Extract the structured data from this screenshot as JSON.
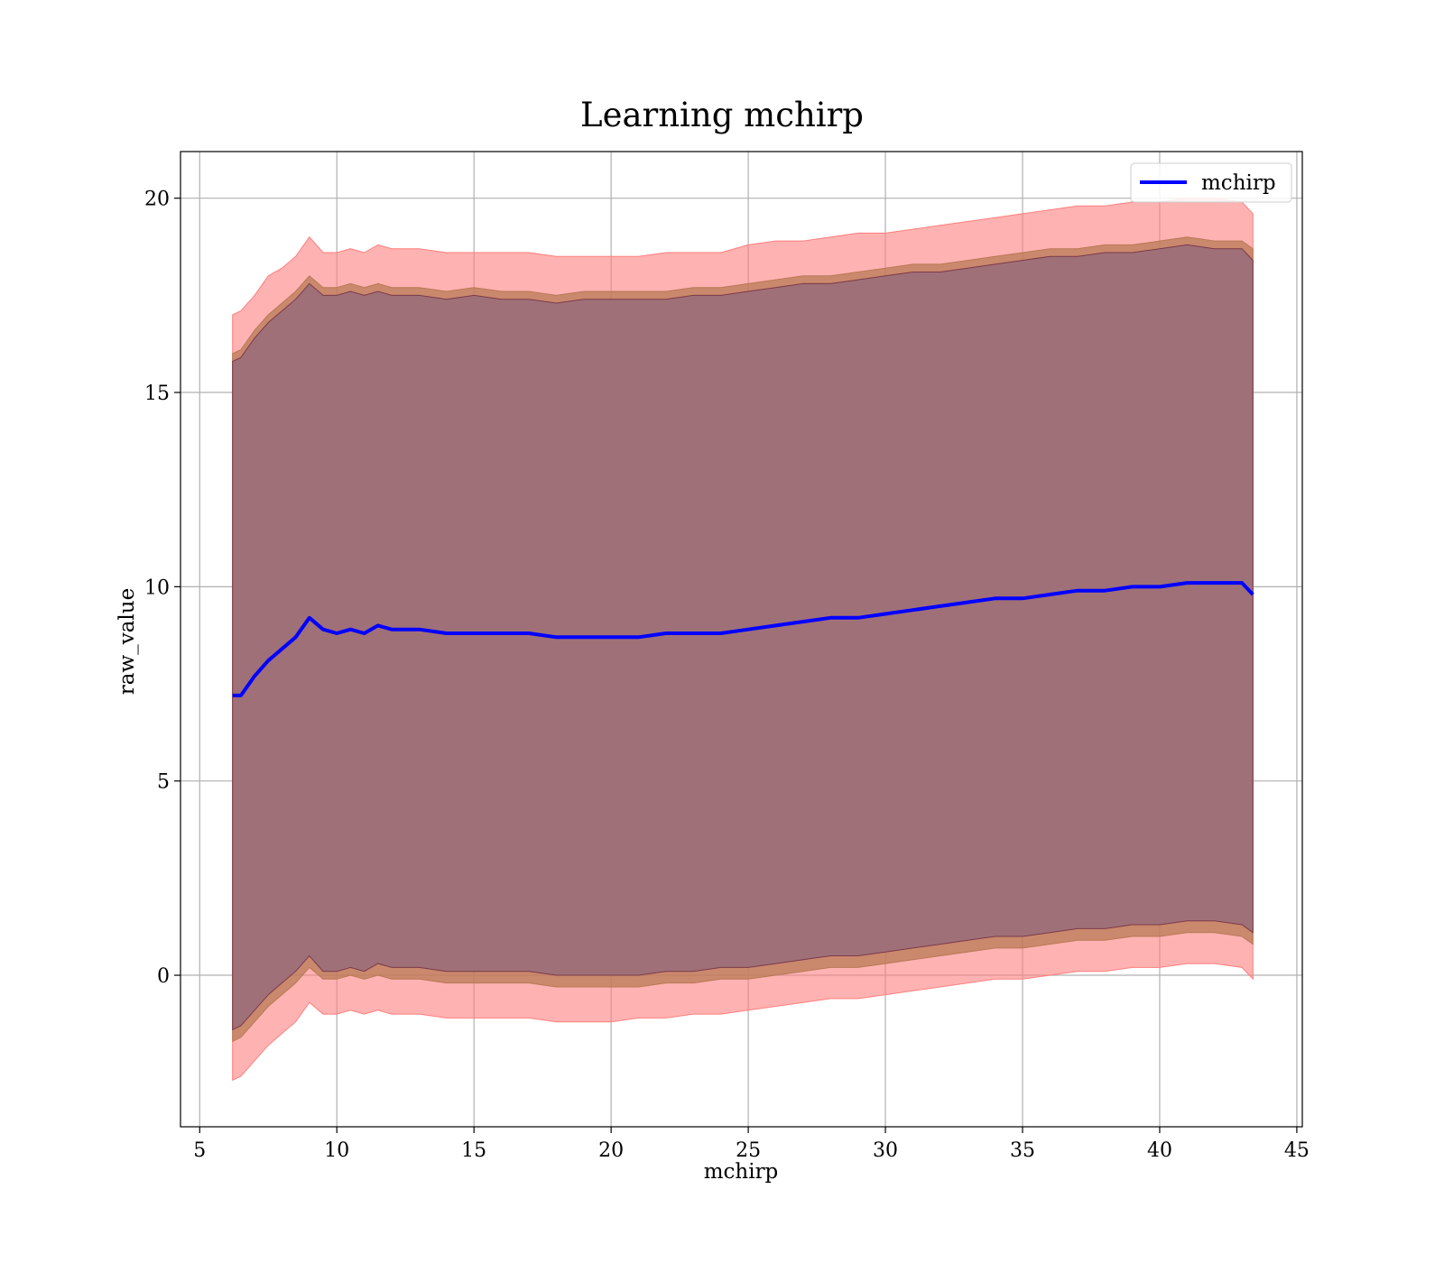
{
  "chart_data": {
    "type": "line",
    "title": "Learning mchirp",
    "xlabel": "mchirp",
    "ylabel": "raw_value",
    "xlim": [
      4.3,
      45.2
    ],
    "ylim": [
      -3.9,
      21.2
    ],
    "xticks": [
      5,
      10,
      15,
      20,
      25,
      30,
      35,
      40,
      45
    ],
    "yticks": [
      0,
      5,
      10,
      15,
      20
    ],
    "grid": true,
    "legend": {
      "position": "upper right",
      "entries": [
        "mchirp"
      ]
    },
    "colors": {
      "line": "#0000ff",
      "band_outer": "#ff7f7f",
      "band_middle": "#b87a55",
      "band_inner": "#7a3a4a",
      "plot_inner_fill": "#a07078"
    },
    "x": [
      6.2,
      6.5,
      7.0,
      7.5,
      8.0,
      8.5,
      9.0,
      9.5,
      10.0,
      10.5,
      11.0,
      11.5,
      12.0,
      13.0,
      14.0,
      15.0,
      16.0,
      17.0,
      18.0,
      19.0,
      20.0,
      21.0,
      22.0,
      23.0,
      24.0,
      25.0,
      26.0,
      27.0,
      28.0,
      29.0,
      30.0,
      31.0,
      32.0,
      33.0,
      34.0,
      35.0,
      36.0,
      37.0,
      38.0,
      39.0,
      40.0,
      41.0,
      42.0,
      43.0,
      43.4
    ],
    "series": [
      {
        "name": "mchirp",
        "mean": [
          7.2,
          7.2,
          7.7,
          8.1,
          8.4,
          8.7,
          9.2,
          8.9,
          8.8,
          8.9,
          8.8,
          9.0,
          8.9,
          8.9,
          8.8,
          8.8,
          8.8,
          8.8,
          8.7,
          8.7,
          8.7,
          8.7,
          8.8,
          8.8,
          8.8,
          8.9,
          9.0,
          9.1,
          9.2,
          9.2,
          9.3,
          9.4,
          9.5,
          9.6,
          9.7,
          9.7,
          9.8,
          9.9,
          9.9,
          10.0,
          10.0,
          10.1,
          10.1,
          10.1,
          9.8
        ],
        "upper_outer": [
          17.0,
          17.1,
          17.5,
          18.0,
          18.2,
          18.5,
          19.0,
          18.6,
          18.6,
          18.7,
          18.6,
          18.8,
          18.7,
          18.7,
          18.6,
          18.6,
          18.6,
          18.6,
          18.5,
          18.5,
          18.5,
          18.5,
          18.6,
          18.6,
          18.6,
          18.8,
          18.9,
          18.9,
          19.0,
          19.1,
          19.1,
          19.2,
          19.3,
          19.4,
          19.5,
          19.6,
          19.7,
          19.8,
          19.8,
          19.9,
          19.9,
          20.0,
          20.0,
          19.9,
          19.6
        ],
        "upper_middle": [
          16.0,
          16.1,
          16.6,
          17.0,
          17.3,
          17.6,
          18.0,
          17.7,
          17.7,
          17.8,
          17.7,
          17.8,
          17.7,
          17.7,
          17.6,
          17.7,
          17.6,
          17.6,
          17.5,
          17.6,
          17.6,
          17.6,
          17.6,
          17.7,
          17.7,
          17.8,
          17.9,
          18.0,
          18.0,
          18.1,
          18.2,
          18.3,
          18.3,
          18.4,
          18.5,
          18.6,
          18.7,
          18.7,
          18.8,
          18.8,
          18.9,
          19.0,
          18.9,
          18.9,
          18.7
        ],
        "upper_inner": [
          15.8,
          15.9,
          16.4,
          16.8,
          17.1,
          17.4,
          17.8,
          17.5,
          17.5,
          17.6,
          17.5,
          17.6,
          17.5,
          17.5,
          17.4,
          17.5,
          17.4,
          17.4,
          17.3,
          17.4,
          17.4,
          17.4,
          17.4,
          17.5,
          17.5,
          17.6,
          17.7,
          17.8,
          17.8,
          17.9,
          18.0,
          18.1,
          18.1,
          18.2,
          18.3,
          18.4,
          18.5,
          18.5,
          18.6,
          18.6,
          18.7,
          18.8,
          18.7,
          18.7,
          18.4
        ],
        "lower_inner": [
          -1.4,
          -1.3,
          -0.9,
          -0.5,
          -0.2,
          0.1,
          0.5,
          0.1,
          0.1,
          0.2,
          0.1,
          0.3,
          0.2,
          0.2,
          0.1,
          0.1,
          0.1,
          0.1,
          0.0,
          0.0,
          0.0,
          0.0,
          0.1,
          0.1,
          0.2,
          0.2,
          0.3,
          0.4,
          0.5,
          0.5,
          0.6,
          0.7,
          0.8,
          0.9,
          1.0,
          1.0,
          1.1,
          1.2,
          1.2,
          1.3,
          1.3,
          1.4,
          1.4,
          1.3,
          1.1
        ],
        "lower_middle": [
          -1.7,
          -1.6,
          -1.2,
          -0.8,
          -0.5,
          -0.2,
          0.2,
          -0.1,
          -0.1,
          0.0,
          -0.1,
          0.0,
          -0.1,
          -0.1,
          -0.2,
          -0.2,
          -0.2,
          -0.2,
          -0.3,
          -0.3,
          -0.3,
          -0.3,
          -0.2,
          -0.2,
          -0.1,
          -0.1,
          0.0,
          0.1,
          0.2,
          0.2,
          0.3,
          0.4,
          0.5,
          0.6,
          0.7,
          0.7,
          0.8,
          0.9,
          0.9,
          1.0,
          1.0,
          1.1,
          1.1,
          1.0,
          0.8
        ],
        "lower_outer": [
          -2.7,
          -2.6,
          -2.2,
          -1.8,
          -1.5,
          -1.2,
          -0.7,
          -1.0,
          -1.0,
          -0.9,
          -1.0,
          -0.9,
          -1.0,
          -1.0,
          -1.1,
          -1.1,
          -1.1,
          -1.1,
          -1.2,
          -1.2,
          -1.2,
          -1.1,
          -1.1,
          -1.0,
          -1.0,
          -0.9,
          -0.8,
          -0.7,
          -0.6,
          -0.6,
          -0.5,
          -0.4,
          -0.3,
          -0.2,
          -0.1,
          -0.1,
          0.0,
          0.1,
          0.1,
          0.2,
          0.2,
          0.3,
          0.3,
          0.2,
          -0.1
        ]
      }
    ]
  }
}
